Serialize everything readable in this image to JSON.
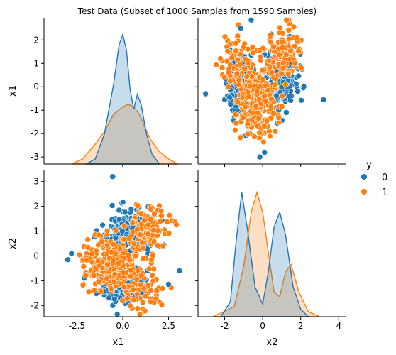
{
  "chart_data": {
    "type": "scatter",
    "title": "Test Data (Subset of 1000 Samples from 1590 Samples)",
    "variables": [
      "x1",
      "x2"
    ],
    "hue": {
      "name": "y",
      "classes": [
        {
          "label": "0",
          "color": "#1f77b4"
        },
        {
          "label": "1",
          "color": "#ff7f0e"
        }
      ]
    },
    "legend": {
      "title": "y",
      "placement": "right"
    },
    "axes": {
      "x1": {
        "range": [
          -4.3,
          3.8
        ],
        "ticks": [
          "-2.5",
          "0.0",
          "2.5"
        ],
        "tick_values": [
          -2.5,
          0,
          2.5
        ]
      },
      "x2": {
        "range": [
          -3.4,
          4.4
        ],
        "ticks": [
          "-2",
          "0",
          "2",
          "4"
        ],
        "tick_values": [
          -2,
          0,
          2,
          4
        ]
      },
      "y_x1": {
        "range": [
          -3.3,
          2.95
        ],
        "ticks": [
          "2",
          "1",
          "0",
          "-1",
          "-2",
          "-3"
        ],
        "tick_values": [
          2,
          1,
          0,
          -1,
          -2,
          -3
        ]
      },
      "y_x2": {
        "range": [
          -2.45,
          3.45
        ],
        "ticks": [
          "3",
          "2",
          "1",
          "0",
          "-1",
          "-2"
        ],
        "tick_values": [
          3,
          2,
          1,
          0,
          -1,
          -2
        ]
      }
    },
    "kde_x1": {
      "class_0": {
        "x": [
          -2.0,
          -1.5,
          -1.0,
          -0.5,
          -0.2,
          0.0,
          0.2,
          0.4,
          0.6,
          0.8,
          1.0,
          1.3,
          1.6,
          2.0
        ],
        "density": [
          0.0,
          0.02,
          0.12,
          0.32,
          0.48,
          0.52,
          0.46,
          0.3,
          0.22,
          0.28,
          0.24,
          0.12,
          0.04,
          0.0
        ]
      },
      "class_1": {
        "x": [
          -2.8,
          -2.2,
          -1.5,
          -1.0,
          -0.5,
          0.0,
          0.3,
          0.6,
          0.9,
          1.2,
          1.5,
          2.0,
          2.5,
          3.0
        ],
        "density": [
          0.0,
          0.02,
          0.08,
          0.13,
          0.2,
          0.23,
          0.24,
          0.23,
          0.2,
          0.15,
          0.1,
          0.05,
          0.02,
          0.0
        ]
      }
    },
    "kde_x2": {
      "class_0": {
        "x": [
          -2.2,
          -1.7,
          -1.4,
          -1.1,
          -0.8,
          -0.4,
          0.0,
          0.3,
          0.6,
          0.9,
          1.2,
          1.6,
          2.0,
          2.4
        ],
        "density": [
          0.0,
          0.06,
          0.3,
          0.5,
          0.35,
          0.12,
          0.05,
          0.18,
          0.36,
          0.42,
          0.33,
          0.12,
          0.03,
          0.0
        ]
      },
      "class_1": {
        "x": [
          -2.6,
          -1.5,
          -1.0,
          -0.6,
          -0.3,
          0.0,
          0.3,
          0.6,
          0.9,
          1.2,
          1.5,
          1.9,
          2.4,
          3.0
        ],
        "density": [
          0.0,
          0.04,
          0.2,
          0.42,
          0.5,
          0.42,
          0.26,
          0.1,
          0.08,
          0.18,
          0.21,
          0.1,
          0.02,
          0.0
        ]
      }
    }
  }
}
